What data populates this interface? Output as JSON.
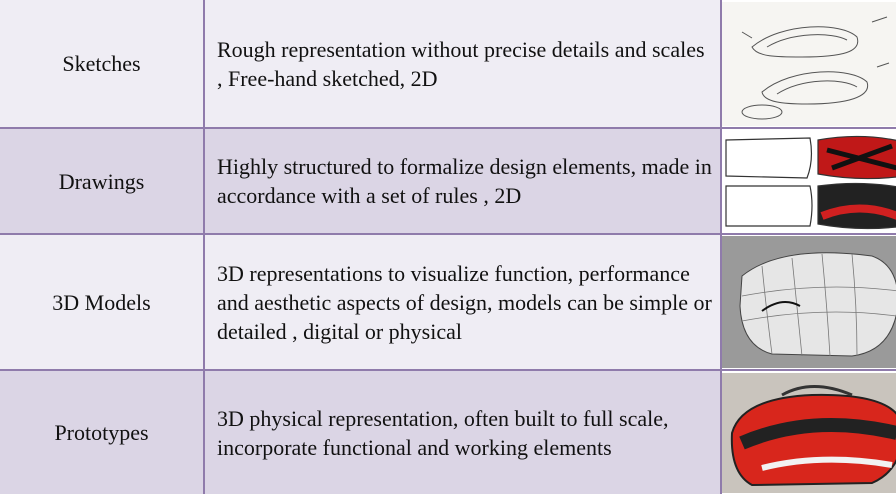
{
  "table": {
    "rows": [
      [
        "Sketches",
        "Rough representation without precise details and scales , Free-hand sketched, 2D"
      ],
      [
        "Drawings",
        "Highly structured to formalize design elements, made in accordance with a set of rules , 2D"
      ],
      [
        "3D Models",
        "3D representations to visualize function, performance and aesthetic aspects of design, models can be simple or detailed , digital or physical"
      ],
      [
        "Prototypes",
        "3D physical representation, often built to full scale, incorporate functional and working elements"
      ]
    ]
  }
}
